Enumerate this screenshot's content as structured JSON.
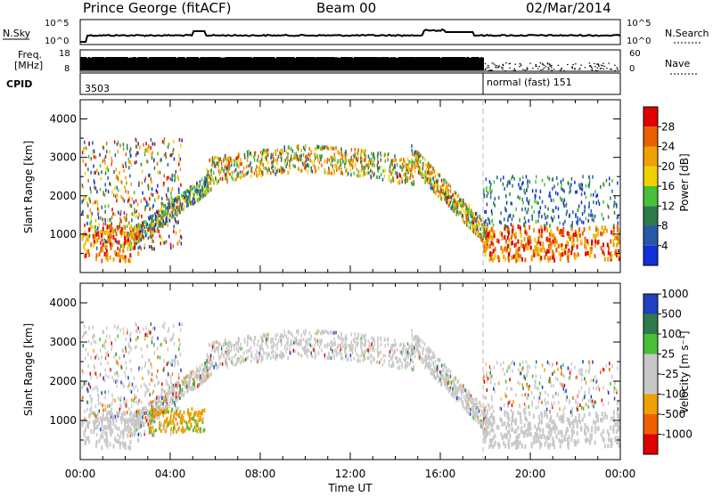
{
  "header": {
    "station": "Prince George (fitACF)",
    "beam": "Beam 00",
    "date": "02/Mar/2014"
  },
  "strips": {
    "nsky_label": "N.Sky",
    "nsky_ticks": [
      "10^5",
      "10^0"
    ],
    "nsearch_label": "N.Search",
    "nsearch_ticks": [
      "10^5",
      "10^0"
    ],
    "freq_label_1": "Freq.",
    "freq_label_2": "[MHz]",
    "freq_ticks": [
      "18",
      "8"
    ],
    "nave_label": "Nave",
    "nave_ticks": [
      "60",
      "0"
    ],
    "cpid_label": "CPID",
    "cpid_start": "3503",
    "cpid_mode": "normal (fast) 151"
  },
  "chart_data": [
    {
      "type": "heatmap",
      "name": "power-panel",
      "ylabel": "Slant Range [km]",
      "yticks": [
        "1000",
        "2000",
        "3000",
        "4000"
      ],
      "ylim": [
        0,
        4500
      ],
      "colorbar_label": "Power [dB]",
      "colorbar_ticks": [
        "4",
        "8",
        "12",
        "16",
        "20",
        "24",
        "28"
      ],
      "colorbar_colors": [
        "#1030d8",
        "#2858a8",
        "#2e7a4a",
        "#48c038",
        "#f0d000",
        "#f0a000",
        "#e86000",
        "#e00000"
      ]
    },
    {
      "type": "heatmap",
      "name": "velocity-panel",
      "ylabel": "Slant Range [km]",
      "yticks": [
        "1000",
        "2000",
        "3000",
        "4000"
      ],
      "ylim": [
        0,
        4500
      ],
      "colorbar_label": "Velocity [m s⁻¹]",
      "colorbar_ticks": [
        "-1000",
        "-500",
        "-100",
        "-25",
        "25",
        "100",
        "500",
        "1000"
      ],
      "colorbar_colors": [
        "#e00000",
        "#f06000",
        "#f0a000",
        "#c8c8c8",
        "#c8c8c8",
        "#48c038",
        "#2e7a4a",
        "#2040c0"
      ]
    }
  ],
  "xaxis": {
    "label": "Time UT",
    "ticks": [
      "00:00",
      "04:00",
      "08:00",
      "12:00",
      "16:00",
      "20:00",
      "00:00"
    ],
    "xlim_hours": [
      0,
      24
    ],
    "mode_change_hour": 17.9
  }
}
